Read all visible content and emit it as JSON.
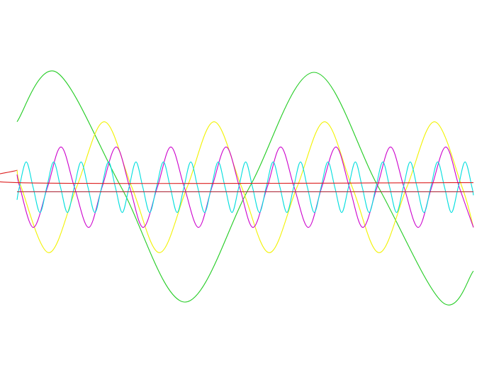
{
  "chart_data": {
    "type": "line",
    "xlim": [
      0,
      644
    ],
    "ylim": [
      -1,
      1
    ],
    "grid": false,
    "series": [
      {
        "color": "#22cc22",
        "x": [
          0,
          56,
          147,
          237,
          328,
          419,
          510,
          600,
          644
        ],
        "values": [
          0.57,
          1,
          0,
          -1,
          0,
          1,
          0,
          -1,
          -0.73
        ]
      },
      {
        "color": "#f2f200",
        "x": [
          0,
          6,
          45,
          84,
          123,
          162,
          201,
          240,
          278,
          317,
          356,
          395,
          434,
          473,
          511,
          550,
          589,
          628,
          644
        ],
        "values": [
          0.15,
          0,
          -0.57,
          0,
          0.57,
          0,
          -0.57,
          0,
          0.57,
          0,
          -0.57,
          0,
          0.57,
          0,
          -0.57,
          0,
          0.57,
          0,
          -0.35
        ]
      },
      {
        "color": "#cc00cc",
        "x": [
          0,
          4,
          23,
          43,
          62,
          81,
          101,
          120,
          140,
          159,
          178,
          198,
          217,
          236,
          256,
          275,
          295,
          314,
          333,
          353,
          372,
          391,
          411,
          430,
          450,
          469,
          488,
          508,
          527,
          546,
          566,
          585,
          605,
          624,
          644
        ],
        "values": [
          0.11,
          0,
          -0.35,
          0,
          0.35,
          0,
          -0.35,
          0,
          0.35,
          0,
          -0.35,
          0,
          0.35,
          0,
          -0.35,
          0,
          0.35,
          0,
          -0.35,
          0,
          0.35,
          0,
          -0.35,
          0,
          0.35,
          0,
          -0.35,
          0,
          0.35,
          0,
          -0.35,
          0,
          0.35,
          0,
          -0.35
        ]
      },
      {
        "color": "#00dede",
        "x": [
          0,
          3.3,
          13.0,
          22.7,
          32.4,
          42.0,
          51.7,
          61.4,
          71.1,
          80.7,
          90.4,
          100.1,
          109.8,
          119.4,
          129.1,
          138.8,
          148.5,
          158.1,
          167.8,
          177.5,
          187.2,
          196.8,
          206.5,
          216.2,
          225.9,
          235.5,
          245.2,
          254.9,
          264.6,
          274.2,
          283.9,
          293.6,
          303.3,
          312.9,
          322.6,
          332.3,
          342.0,
          351.6,
          361.3,
          371.0,
          380.7,
          390.3,
          400.0,
          409.7,
          419.4,
          429.0,
          438.7,
          448.4,
          458.1,
          467.7,
          477.4,
          487.1,
          496.8,
          506.4,
          516.1,
          525.8,
          535.5,
          545.1,
          554.8,
          564.5,
          574.2,
          583.8,
          593.5,
          603.2,
          612.9,
          622.5,
          632.2,
          641.9,
          644
        ],
        "values": [
          -0.11,
          0,
          0.22,
          0,
          -0.22,
          0,
          0.22,
          0,
          -0.22,
          0,
          0.22,
          0,
          -0.22,
          0,
          0.22,
          0,
          -0.22,
          0,
          0.22,
          0,
          -0.22,
          0,
          0.22,
          0,
          -0.22,
          0,
          0.22,
          0,
          -0.22,
          0,
          0.22,
          0,
          -0.22,
          0,
          0.22,
          0,
          -0.22,
          0,
          0.22,
          0,
          -0.22,
          0,
          0.22,
          0,
          -0.22,
          0,
          0.22,
          0,
          -0.22,
          0,
          0.22,
          0,
          -0.22,
          0,
          0.22,
          0,
          -0.22,
          0,
          0.22,
          0,
          -0.22,
          0,
          0.22,
          0,
          -0.22,
          0,
          0.22,
          0,
          -0.07
        ]
      },
      {
        "color": "#dd2020",
        "x": [
          0,
          1,
          644
        ],
        "values": [
          0.15,
          0.04,
          0.04
        ]
      },
      {
        "color": "#b03040",
        "x": [
          0,
          644
        ],
        "values": [
          -0.04,
          -0.04
        ]
      }
    ]
  }
}
